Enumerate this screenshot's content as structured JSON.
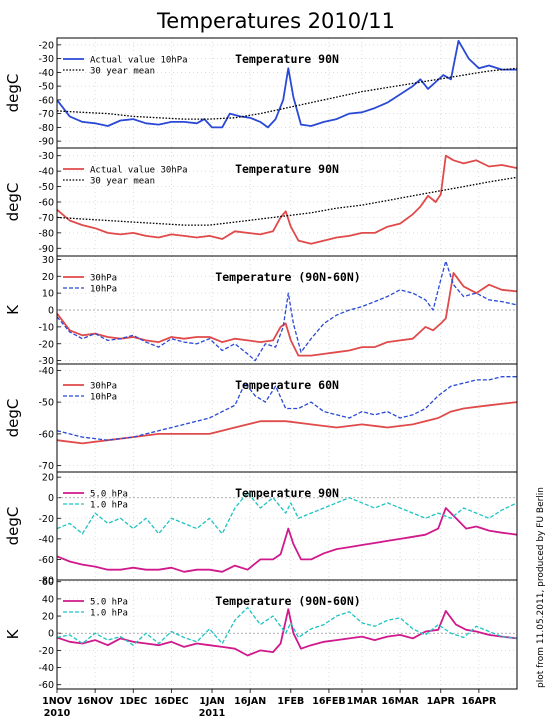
{
  "title": "Temperatures 2010/11",
  "credit": "plot from 11.05.2011, produced by FU Berlin",
  "colors": {
    "blue": "#2a49d6",
    "red": "#e04a4a",
    "magenta": "#d0198c",
    "cyan": "#1ec3c3",
    "black": "#000000"
  },
  "x_axis": {
    "ticks": [
      {
        "day": 0,
        "label": "1NOV"
      },
      {
        "day": 15,
        "label": "16NOV"
      },
      {
        "day": 30,
        "label": "1DEC"
      },
      {
        "day": 45,
        "label": "16DEC"
      },
      {
        "day": 61,
        "label": "1JAN"
      },
      {
        "day": 76,
        "label": "16JAN"
      },
      {
        "day": 92,
        "label": "1FEB"
      },
      {
        "day": 107,
        "label": "16FEB"
      },
      {
        "day": 120,
        "label": "1MAR"
      },
      {
        "day": 135,
        "label": "16MAR"
      },
      {
        "day": 151,
        "label": "1APR"
      },
      {
        "day": 166,
        "label": "16APR"
      }
    ],
    "year_labels": [
      {
        "day": 0,
        "label": "2010"
      },
      {
        "day": 61,
        "label": "2011"
      }
    ],
    "range_days": [
      0,
      181
    ]
  },
  "chart_data": [
    {
      "type": "line",
      "title": "Temperature 90N",
      "ylabel": "degC",
      "ylim": [
        -95,
        -15
      ],
      "yticks": [
        -90,
        -80,
        -70,
        -60,
        -50,
        -40,
        -30,
        -20
      ],
      "grid": true,
      "legend": "top-left",
      "series": [
        {
          "name": "Actual value 10hPa",
          "color": "#2a49d6",
          "dash": "solid",
          "x": [
            0,
            5,
            10,
            15,
            20,
            25,
            30,
            35,
            40,
            45,
            50,
            55,
            58,
            61,
            65,
            68,
            72,
            76,
            80,
            83,
            86,
            89,
            91,
            93,
            96,
            100,
            105,
            110,
            115,
            120,
            125,
            130,
            135,
            140,
            143,
            146,
            149,
            152,
            155,
            158,
            162,
            166,
            170,
            175,
            181
          ],
          "y": [
            -60,
            -72,
            -76,
            -77,
            -79,
            -75,
            -74,
            -77,
            -78,
            -76,
            -76,
            -77,
            -74,
            -80,
            -80,
            -70,
            -72,
            -73,
            -76,
            -80,
            -74,
            -60,
            -37,
            -58,
            -78,
            -79,
            -76,
            -74,
            -70,
            -69,
            -66,
            -62,
            -56,
            -50,
            -45,
            -52,
            -47,
            -42,
            -45,
            -17,
            -30,
            -37,
            -35,
            -38,
            -38
          ]
        },
        {
          "name": "30 year mean",
          "color": "#000000",
          "dash": "dotted",
          "x": [
            0,
            10,
            20,
            30,
            40,
            50,
            60,
            70,
            80,
            90,
            100,
            110,
            120,
            130,
            140,
            150,
            160,
            170,
            181
          ],
          "y": [
            -68,
            -69,
            -70,
            -72,
            -73,
            -74,
            -74,
            -73,
            -70,
            -66,
            -62,
            -58,
            -54,
            -51,
            -48,
            -45,
            -42,
            -39,
            -37
          ]
        }
      ]
    },
    {
      "type": "line",
      "title": "Temperature 90N",
      "ylabel": "degC",
      "ylim": [
        -95,
        -25
      ],
      "yticks": [
        -90,
        -80,
        -70,
        -60,
        -50,
        -40,
        -30
      ],
      "grid": true,
      "legend": "top-left",
      "series": [
        {
          "name": "Actual value 30hPa",
          "color": "#e04a4a",
          "dash": "solid",
          "x": [
            0,
            5,
            10,
            15,
            20,
            25,
            30,
            35,
            40,
            45,
            50,
            55,
            60,
            65,
            70,
            75,
            80,
            85,
            88,
            90,
            92,
            95,
            100,
            105,
            110,
            115,
            120,
            125,
            130,
            135,
            140,
            143,
            146,
            149,
            151,
            153,
            156,
            160,
            165,
            170,
            175,
            181
          ],
          "y": [
            -65,
            -72,
            -75,
            -77,
            -80,
            -81,
            -80,
            -82,
            -83,
            -81,
            -82,
            -83,
            -82,
            -84,
            -79,
            -80,
            -81,
            -79,
            -70,
            -66,
            -76,
            -85,
            -87,
            -85,
            -83,
            -82,
            -80,
            -80,
            -76,
            -74,
            -68,
            -63,
            -56,
            -60,
            -55,
            -30,
            -33,
            -35,
            -33,
            -37,
            -36,
            -38
          ]
        },
        {
          "name": "30 year mean",
          "color": "#000000",
          "dash": "dotted",
          "x": [
            0,
            10,
            20,
            30,
            40,
            50,
            60,
            70,
            80,
            90,
            100,
            110,
            120,
            130,
            140,
            150,
            160,
            170,
            181
          ],
          "y": [
            -70,
            -71,
            -72,
            -73,
            -74,
            -75,
            -75,
            -73,
            -71,
            -69,
            -67,
            -64,
            -62,
            -59,
            -56,
            -53,
            -50,
            -47,
            -44
          ]
        }
      ]
    },
    {
      "type": "line",
      "title": "Temperature (90N-60N)",
      "ylabel": "K",
      "ylim": [
        -32,
        32
      ],
      "yticks": [
        -30,
        -20,
        -10,
        0,
        10,
        20,
        30
      ],
      "grid": true,
      "legend": "top-left",
      "series": [
        {
          "name": "30hPa",
          "color": "#e04a4a",
          "dash": "solid",
          "x": [
            0,
            5,
            10,
            15,
            20,
            25,
            30,
            35,
            40,
            45,
            50,
            55,
            60,
            65,
            70,
            75,
            80,
            85,
            88,
            90,
            92,
            95,
            100,
            105,
            110,
            115,
            120,
            125,
            130,
            135,
            140,
            145,
            148,
            151,
            153,
            156,
            160,
            165,
            170,
            175,
            181
          ],
          "y": [
            -2,
            -12,
            -15,
            -14,
            -16,
            -17,
            -16,
            -18,
            -19,
            -16,
            -17,
            -16,
            -16,
            -19,
            -17,
            -18,
            -19,
            -18,
            -10,
            -8,
            -18,
            -27,
            -27,
            -26,
            -25,
            -24,
            -22,
            -22,
            -19,
            -18,
            -17,
            -10,
            -12,
            -8,
            -5,
            22,
            14,
            10,
            15,
            12,
            11
          ]
        },
        {
          "name": "10hPa",
          "color": "#2a49d6",
          "dash": "dashed",
          "x": [
            0,
            5,
            10,
            15,
            20,
            25,
            30,
            35,
            40,
            45,
            50,
            55,
            60,
            65,
            70,
            75,
            78,
            82,
            86,
            89,
            91,
            93,
            96,
            100,
            105,
            110,
            115,
            120,
            125,
            130,
            135,
            140,
            145,
            148,
            151,
            153,
            156,
            160,
            165,
            170,
            175,
            181
          ],
          "y": [
            -4,
            -13,
            -17,
            -14,
            -18,
            -17,
            -15,
            -19,
            -22,
            -17,
            -19,
            -20,
            -17,
            -24,
            -20,
            -26,
            -30,
            -20,
            -22,
            -10,
            10,
            -8,
            -25,
            -17,
            -8,
            -3,
            0,
            2,
            5,
            8,
            12,
            10,
            6,
            0,
            18,
            29,
            15,
            8,
            10,
            6,
            5,
            3
          ]
        }
      ]
    },
    {
      "type": "line",
      "title": "Temperature 60N",
      "ylabel": "degC",
      "ylim": [
        -72,
        -38
      ],
      "yticks": [
        -70,
        -60,
        -50,
        -40
      ],
      "grid": true,
      "legend": "top-left",
      "series": [
        {
          "name": "30hPa",
          "color": "#e04a4a",
          "dash": "solid",
          "x": [
            0,
            10,
            20,
            30,
            40,
            50,
            60,
            70,
            80,
            90,
            100,
            110,
            120,
            130,
            140,
            150,
            155,
            160,
            170,
            181
          ],
          "y": [
            -62,
            -63,
            -62,
            -61,
            -60,
            -60,
            -60,
            -58,
            -56,
            -56,
            -57,
            -58,
            -57,
            -58,
            -57,
            -55,
            -53,
            -52,
            -51,
            -50
          ]
        },
        {
          "name": "10hPa",
          "color": "#2a49d6",
          "dash": "dashed",
          "x": [
            0,
            10,
            20,
            30,
            40,
            50,
            60,
            65,
            70,
            74,
            78,
            82,
            86,
            90,
            95,
            100,
            105,
            110,
            115,
            120,
            125,
            130,
            135,
            140,
            145,
            150,
            155,
            160,
            165,
            170,
            175,
            181
          ],
          "y": [
            -59,
            -61,
            -62,
            -61,
            -59,
            -57,
            -55,
            -53,
            -51,
            -44,
            -48,
            -50,
            -45,
            -52,
            -52,
            -50,
            -53,
            -54,
            -55,
            -53,
            -54,
            -53,
            -55,
            -54,
            -52,
            -48,
            -45,
            -44,
            -43,
            -43,
            -42,
            -42
          ]
        }
      ]
    },
    {
      "type": "line",
      "title": "Temperature 90N",
      "ylabel": "degC",
      "ylim": [
        -80,
        25
      ],
      "yticks": [
        -80,
        -60,
        -40,
        -20,
        0,
        20
      ],
      "grid": true,
      "legend": "top-left",
      "series": [
        {
          "name": "5.0 hPa",
          "color": "#d0198c",
          "dash": "solid",
          "x": [
            0,
            5,
            10,
            15,
            20,
            25,
            30,
            35,
            40,
            45,
            50,
            55,
            60,
            65,
            70,
            75,
            80,
            85,
            88,
            91,
            93,
            96,
            100,
            105,
            110,
            115,
            120,
            125,
            130,
            135,
            140,
            145,
            150,
            153,
            157,
            161,
            165,
            170,
            175,
            181
          ],
          "y": [
            -57,
            -62,
            -65,
            -67,
            -70,
            -70,
            -68,
            -70,
            -70,
            -68,
            -72,
            -70,
            -70,
            -72,
            -66,
            -70,
            -60,
            -60,
            -55,
            -30,
            -45,
            -60,
            -60,
            -54,
            -50,
            -48,
            -46,
            -44,
            -42,
            -40,
            -38,
            -36,
            -30,
            -10,
            -20,
            -30,
            -28,
            -32,
            -34,
            -36
          ]
        },
        {
          "name": "1.0 hPa",
          "color": "#1ec3c3",
          "dash": "dashed",
          "x": [
            0,
            5,
            10,
            15,
            20,
            25,
            30,
            35,
            40,
            45,
            50,
            55,
            60,
            65,
            70,
            75,
            80,
            85,
            90,
            92,
            95,
            100,
            105,
            110,
            115,
            120,
            125,
            130,
            135,
            140,
            145,
            150,
            155,
            160,
            165,
            170,
            175,
            181
          ],
          "y": [
            -30,
            -25,
            -35,
            -15,
            -25,
            -20,
            -30,
            -20,
            -35,
            -20,
            -25,
            -30,
            -20,
            -35,
            -10,
            5,
            -10,
            0,
            -15,
            -5,
            -20,
            -15,
            -10,
            -5,
            0,
            -5,
            -10,
            -5,
            -10,
            -15,
            -20,
            -15,
            -20,
            -10,
            -15,
            -20,
            -12,
            -5
          ]
        }
      ]
    },
    {
      "type": "line",
      "title": "Temperature (90N-60N)",
      "ylabel": "K",
      "ylim": [
        -65,
        62
      ],
      "yticks": [
        -60,
        -40,
        -20,
        0,
        20,
        40,
        60
      ],
      "grid": true,
      "legend": "top-left",
      "series": [
        {
          "name": "5.0 hPa",
          "color": "#d0198c",
          "dash": "solid",
          "x": [
            0,
            5,
            10,
            15,
            20,
            25,
            30,
            35,
            40,
            45,
            50,
            55,
            60,
            65,
            70,
            75,
            80,
            85,
            88,
            91,
            93,
            96,
            100,
            105,
            110,
            115,
            120,
            125,
            130,
            135,
            140,
            145,
            150,
            153,
            157,
            161,
            165,
            170,
            175,
            181
          ],
          "y": [
            -5,
            -10,
            -12,
            -8,
            -14,
            -6,
            -10,
            -12,
            -14,
            -10,
            -16,
            -12,
            -14,
            -16,
            -18,
            -26,
            -20,
            -22,
            -12,
            28,
            0,
            -18,
            -14,
            -10,
            -8,
            -6,
            -4,
            -8,
            -4,
            -2,
            -6,
            2,
            4,
            26,
            10,
            4,
            2,
            -2,
            -4,
            -6
          ]
        },
        {
          "name": "1.0 hPa",
          "color": "#1ec3c3",
          "dash": "dashed",
          "x": [
            0,
            5,
            10,
            15,
            20,
            25,
            30,
            35,
            40,
            45,
            50,
            55,
            60,
            65,
            70,
            75,
            80,
            85,
            90,
            92,
            95,
            100,
            105,
            110,
            115,
            120,
            125,
            130,
            135,
            140,
            145,
            150,
            155,
            160,
            165,
            170,
            175,
            181
          ],
          "y": [
            -5,
            -2,
            -12,
            0,
            -8,
            -4,
            -14,
            0,
            -12,
            2,
            -5,
            -10,
            5,
            -12,
            15,
            30,
            10,
            20,
            0,
            12,
            -5,
            5,
            10,
            20,
            25,
            12,
            8,
            15,
            18,
            5,
            -2,
            10,
            0,
            -5,
            8,
            2,
            -4,
            -6
          ]
        }
      ]
    }
  ]
}
